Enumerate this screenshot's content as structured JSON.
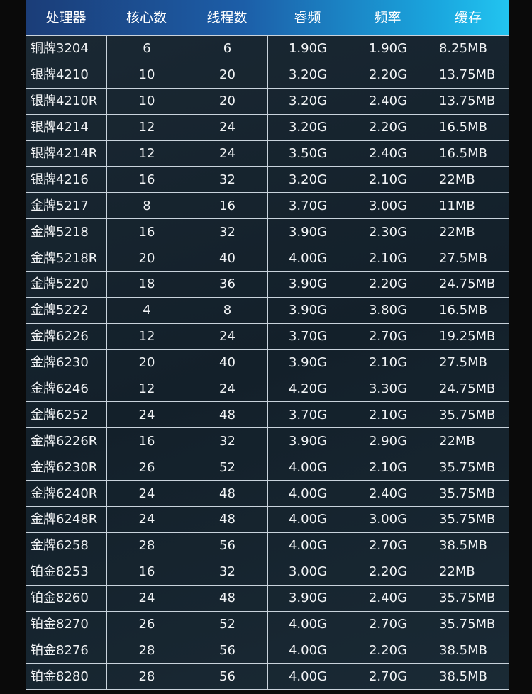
{
  "colors": {
    "header_start": "#1b3d78",
    "header_end": "#22c4f0",
    "background": "#0a0a0a",
    "row_bg": "#16232d"
  },
  "table": {
    "headers": [
      "处理器",
      "核心数",
      "线程数",
      "睿频",
      "频率",
      "缓存"
    ],
    "rows": [
      [
        "铜牌3204",
        "6",
        "6",
        "1.90G",
        "1.90G",
        "8.25MB"
      ],
      [
        "银牌4210",
        "10",
        "20",
        "3.20G",
        "2.20G",
        "13.75MB"
      ],
      [
        "银牌4210R",
        "10",
        "20",
        "3.20G",
        "2.40G",
        "13.75MB"
      ],
      [
        "银牌4214",
        "12",
        "24",
        "3.20G",
        "2.20G",
        "16.5MB"
      ],
      [
        "银牌4214R",
        "12",
        "24",
        "3.50G",
        "2.40G",
        "16.5MB"
      ],
      [
        "银牌4216",
        "16",
        "32",
        "3.20G",
        "2.10G",
        "22MB"
      ],
      [
        "金牌5217",
        "8",
        "16",
        "3.70G",
        "3.00G",
        "11MB"
      ],
      [
        "金牌5218",
        "16",
        "32",
        "3.90G",
        "2.30G",
        "22MB"
      ],
      [
        "金牌5218R",
        "20",
        "40",
        "4.00G",
        "2.10G",
        "27.5MB"
      ],
      [
        "金牌5220",
        "18",
        "36",
        "3.90G",
        "2.20G",
        "24.75MB"
      ],
      [
        "金牌5222",
        "4",
        "8",
        "3.90G",
        "3.80G",
        "16.5MB"
      ],
      [
        "金牌6226",
        "12",
        "24",
        "3.70G",
        "2.70G",
        "19.25MB"
      ],
      [
        "金牌6230",
        "20",
        "40",
        "3.90G",
        "2.10G",
        "27.5MB"
      ],
      [
        "金牌6246",
        "12",
        "24",
        "4.20G",
        "3.30G",
        "24.75MB"
      ],
      [
        "金牌6252",
        "24",
        "48",
        "3.70G",
        "2.10G",
        "35.75MB"
      ],
      [
        "金牌6226R",
        "16",
        "32",
        "3.90G",
        "2.90G",
        "22MB"
      ],
      [
        "金牌6230R",
        "26",
        "52",
        "4.00G",
        "2.10G",
        "35.75MB"
      ],
      [
        "金牌6240R",
        "24",
        "48",
        "4.00G",
        "2.40G",
        "35.75MB"
      ],
      [
        "金牌6248R",
        "24",
        "48",
        "4.00G",
        "3.00G",
        "35.75MB"
      ],
      [
        "金牌6258",
        "28",
        "56",
        "4.00G",
        "2.70G",
        "38.5MB"
      ],
      [
        "铂金8253",
        "16",
        "32",
        "3.00G",
        "2.20G",
        "22MB"
      ],
      [
        "铂金8260",
        "24",
        "48",
        "3.90G",
        "2.40G",
        "35.75MB"
      ],
      [
        "铂金8270",
        "26",
        "52",
        "4.00G",
        "2.70G",
        "35.75MB"
      ],
      [
        "铂金8276",
        "28",
        "56",
        "4.00G",
        "2.20G",
        "38.5MB"
      ],
      [
        "铂金8280",
        "28",
        "56",
        "4.00G",
        "2.70G",
        "38.5MB"
      ]
    ]
  }
}
